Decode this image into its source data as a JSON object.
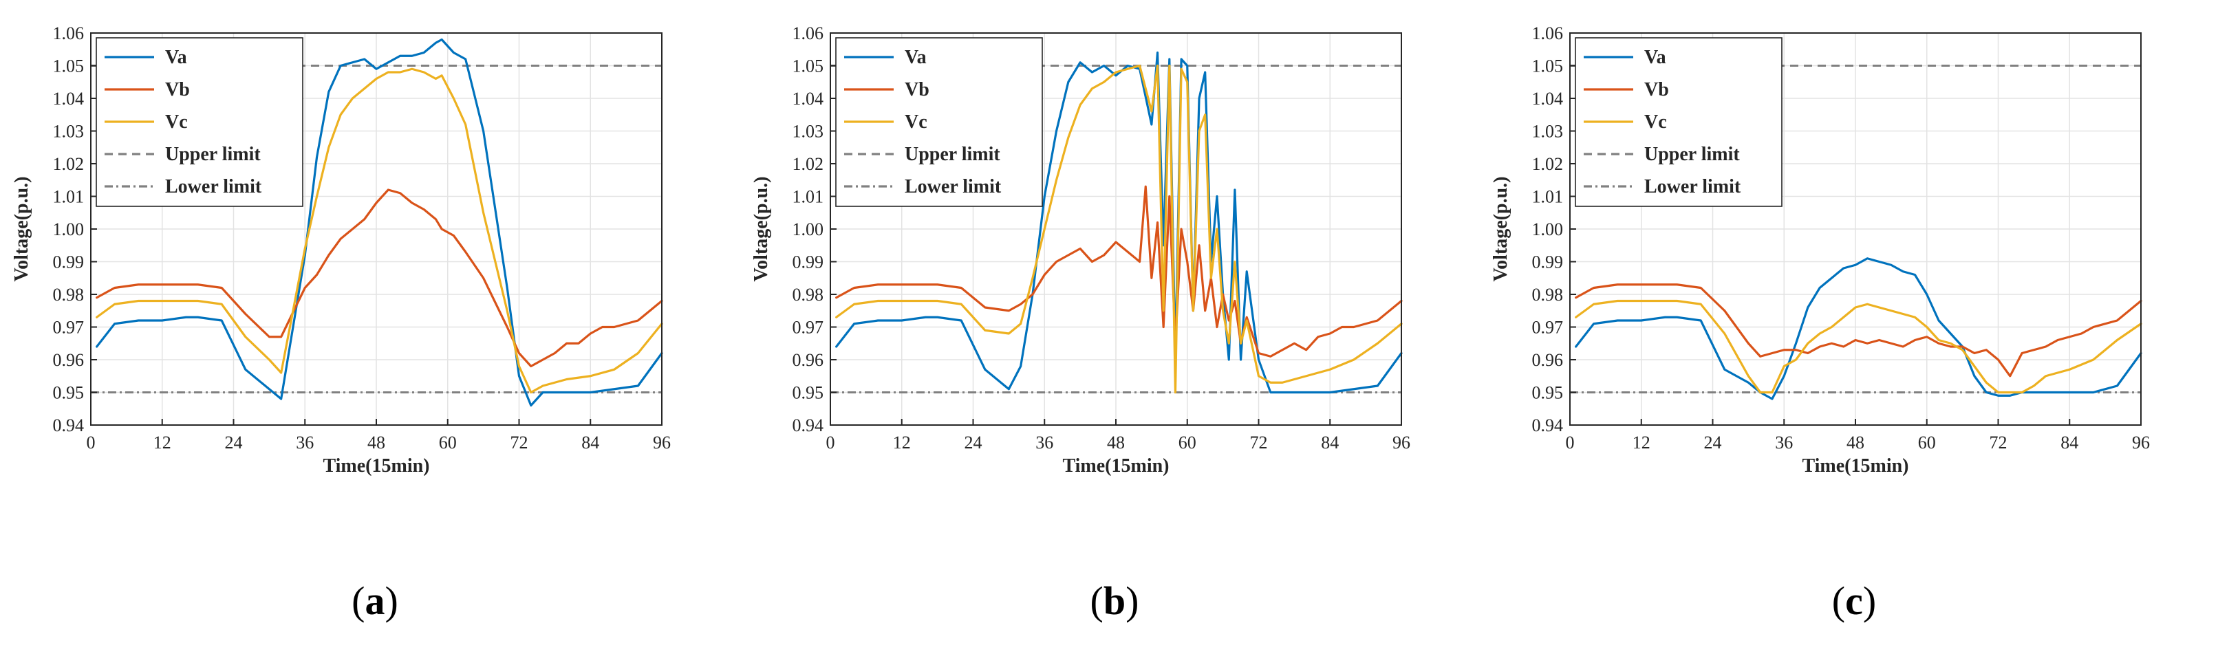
{
  "figure": {
    "panels": [
      {
        "caption_letter": "a",
        "caption_open": "(",
        "caption_close": ")"
      },
      {
        "caption_letter": "b",
        "caption_open": "(",
        "caption_close": ")"
      },
      {
        "caption_letter": "c",
        "caption_open": "(",
        "caption_close": ")"
      }
    ]
  },
  "chart_data": [
    {
      "type": "line",
      "title": "",
      "xlabel": "Time(15min)",
      "ylabel": "Voltage(p.u.)",
      "xlim": [
        0,
        96
      ],
      "ylim": [
        0.94,
        1.06
      ],
      "xticks": [
        0,
        12,
        24,
        36,
        48,
        60,
        72,
        84,
        96
      ],
      "yticks": [
        0.94,
        0.95,
        0.96,
        0.97,
        0.98,
        0.99,
        1.0,
        1.01,
        1.02,
        1.03,
        1.04,
        1.05,
        1.06
      ],
      "ytick_labels": [
        "0.94",
        "0.95",
        "0.96",
        "0.97",
        "0.98",
        "0.99",
        "1.00",
        "1.01",
        "1.02",
        "1.03",
        "1.04",
        "1.05",
        "1.06"
      ],
      "grid": true,
      "legend_position": "top-left",
      "colors": {
        "Va": "#0072BD",
        "Vb": "#D95319",
        "Vc": "#EDB120",
        "limit": "#808080"
      },
      "series": [
        {
          "name": "Va",
          "x": [
            1,
            4,
            8,
            12,
            16,
            18,
            22,
            26,
            30,
            32,
            36,
            38,
            40,
            42,
            44,
            46,
            48,
            50,
            52,
            54,
            56,
            58,
            59,
            61,
            63,
            66,
            70,
            72,
            74,
            76,
            80,
            84,
            88,
            92,
            96
          ],
          "values": [
            0.964,
            0.971,
            0.972,
            0.972,
            0.973,
            0.973,
            0.972,
            0.957,
            0.951,
            0.948,
            0.992,
            1.022,
            1.042,
            1.05,
            1.051,
            1.052,
            1.049,
            1.051,
            1.053,
            1.053,
            1.054,
            1.057,
            1.058,
            1.054,
            1.052,
            1.03,
            0.982,
            0.955,
            0.946,
            0.95,
            0.95,
            0.95,
            0.951,
            0.952,
            0.962
          ]
        },
        {
          "name": "Vb",
          "x": [
            1,
            4,
            8,
            12,
            16,
            18,
            22,
            26,
            30,
            32,
            36,
            38,
            40,
            42,
            44,
            46,
            48,
            50,
            52,
            54,
            56,
            58,
            59,
            61,
            63,
            66,
            70,
            72,
            74,
            76,
            78,
            80,
            82,
            84,
            86,
            88,
            92,
            96
          ],
          "values": [
            0.979,
            0.982,
            0.983,
            0.983,
            0.983,
            0.983,
            0.982,
            0.974,
            0.967,
            0.967,
            0.982,
            0.986,
            0.992,
            0.997,
            1.0,
            1.003,
            1.008,
            1.012,
            1.011,
            1.008,
            1.006,
            1.003,
            1.0,
            0.998,
            0.993,
            0.985,
            0.97,
            0.962,
            0.958,
            0.96,
            0.962,
            0.965,
            0.965,
            0.968,
            0.97,
            0.97,
            0.972,
            0.978
          ]
        },
        {
          "name": "Vc",
          "x": [
            1,
            4,
            8,
            12,
            16,
            18,
            22,
            26,
            30,
            32,
            36,
            38,
            40,
            42,
            44,
            46,
            48,
            50,
            52,
            54,
            56,
            58,
            59,
            61,
            63,
            66,
            70,
            72,
            74,
            76,
            78,
            80,
            84,
            88,
            92,
            96
          ],
          "values": [
            0.973,
            0.977,
            0.978,
            0.978,
            0.978,
            0.978,
            0.977,
            0.967,
            0.96,
            0.956,
            0.994,
            1.01,
            1.025,
            1.035,
            1.04,
            1.043,
            1.046,
            1.048,
            1.048,
            1.049,
            1.048,
            1.046,
            1.047,
            1.04,
            1.032,
            1.005,
            0.975,
            0.958,
            0.95,
            0.952,
            0.953,
            0.954,
            0.955,
            0.957,
            0.962,
            0.971
          ]
        },
        {
          "name": "Upper limit",
          "x": [
            0,
            96
          ],
          "values": [
            1.05,
            1.05
          ]
        },
        {
          "name": "Lower limit",
          "x": [
            0,
            96
          ],
          "values": [
            0.95,
            0.95
          ]
        }
      ]
    },
    {
      "type": "line",
      "title": "",
      "xlabel": "Time(15min)",
      "ylabel": "Voltage(p.u.)",
      "xlim": [
        0,
        96
      ],
      "ylim": [
        0.94,
        1.06
      ],
      "xticks": [
        0,
        12,
        24,
        36,
        48,
        60,
        72,
        84,
        96
      ],
      "yticks": [
        0.94,
        0.95,
        0.96,
        0.97,
        0.98,
        0.99,
        1.0,
        1.01,
        1.02,
        1.03,
        1.04,
        1.05,
        1.06
      ],
      "ytick_labels": [
        "0.94",
        "0.95",
        "0.96",
        "0.97",
        "0.98",
        "0.99",
        "1.00",
        "1.01",
        "1.02",
        "1.03",
        "1.04",
        "1.05",
        "1.06"
      ],
      "grid": true,
      "legend_position": "top-left",
      "colors": {
        "Va": "#0072BD",
        "Vb": "#D95319",
        "Vc": "#EDB120",
        "limit": "#808080"
      },
      "series": [
        {
          "name": "Va",
          "x": [
            1,
            4,
            8,
            12,
            16,
            18,
            22,
            26,
            30,
            32,
            34,
            36,
            38,
            40,
            42,
            44,
            46,
            48,
            50,
            52,
            54,
            55,
            56,
            57,
            58,
            59,
            60,
            61,
            62,
            63,
            64,
            65,
            66,
            67,
            68,
            69,
            70,
            72,
            74,
            76,
            80,
            84,
            88,
            92,
            96
          ],
          "values": [
            0.964,
            0.971,
            0.972,
            0.972,
            0.973,
            0.973,
            0.972,
            0.957,
            0.951,
            0.958,
            0.98,
            1.01,
            1.03,
            1.045,
            1.051,
            1.048,
            1.05,
            1.047,
            1.05,
            1.049,
            1.032,
            1.054,
            0.995,
            1.052,
            0.96,
            1.052,
            1.05,
            0.975,
            1.04,
            1.048,
            0.99,
            1.01,
            0.98,
            0.96,
            1.012,
            0.96,
            0.987,
            0.96,
            0.95,
            0.95,
            0.95,
            0.95,
            0.951,
            0.952,
            0.962
          ]
        },
        {
          "name": "Vb",
          "x": [
            1,
            4,
            8,
            12,
            16,
            18,
            22,
            26,
            30,
            32,
            34,
            36,
            38,
            40,
            42,
            44,
            46,
            48,
            50,
            52,
            53,
            54,
            55,
            56,
            57,
            58,
            59,
            60,
            61,
            62,
            63,
            64,
            65,
            66,
            67,
            68,
            69,
            70,
            72,
            74,
            76,
            78,
            80,
            82,
            84,
            86,
            88,
            92,
            96
          ],
          "values": [
            0.979,
            0.982,
            0.983,
            0.983,
            0.983,
            0.983,
            0.982,
            0.976,
            0.975,
            0.977,
            0.98,
            0.986,
            0.99,
            0.992,
            0.994,
            0.99,
            0.992,
            0.996,
            0.993,
            0.99,
            1.013,
            0.985,
            1.002,
            0.97,
            1.01,
            0.965,
            1.0,
            0.99,
            0.975,
            0.995,
            0.975,
            0.985,
            0.97,
            0.98,
            0.972,
            0.978,
            0.965,
            0.973,
            0.962,
            0.961,
            0.963,
            0.965,
            0.963,
            0.967,
            0.968,
            0.97,
            0.97,
            0.972,
            0.978
          ]
        },
        {
          "name": "Vc",
          "x": [
            1,
            4,
            8,
            12,
            16,
            18,
            22,
            26,
            30,
            32,
            34,
            36,
            38,
            40,
            42,
            44,
            46,
            48,
            50,
            52,
            54,
            55,
            56,
            57,
            58,
            59,
            60,
            61,
            62,
            63,
            64,
            65,
            66,
            67,
            68,
            69,
            70,
            72,
            74,
            76,
            78,
            80,
            84,
            88,
            92,
            96
          ],
          "values": [
            0.973,
            0.977,
            0.978,
            0.978,
            0.978,
            0.978,
            0.977,
            0.969,
            0.968,
            0.971,
            0.985,
            1.0,
            1.015,
            1.028,
            1.038,
            1.043,
            1.045,
            1.048,
            1.049,
            1.05,
            1.036,
            1.05,
            0.975,
            1.05,
            0.95,
            1.049,
            1.045,
            0.975,
            1.03,
            1.035,
            0.985,
            1.0,
            0.975,
            0.965,
            0.99,
            0.965,
            0.972,
            0.955,
            0.953,
            0.953,
            0.954,
            0.955,
            0.957,
            0.96,
            0.965,
            0.971
          ]
        },
        {
          "name": "Upper limit",
          "x": [
            0,
            96
          ],
          "values": [
            1.05,
            1.05
          ]
        },
        {
          "name": "Lower limit",
          "x": [
            0,
            96
          ],
          "values": [
            0.95,
            0.95
          ]
        }
      ]
    },
    {
      "type": "line",
      "title": "",
      "xlabel": "Time(15min)",
      "ylabel": "Voltage(p.u.)",
      "xlim": [
        0,
        96
      ],
      "ylim": [
        0.94,
        1.06
      ],
      "xticks": [
        0,
        12,
        24,
        36,
        48,
        60,
        72,
        84,
        96
      ],
      "yticks": [
        0.94,
        0.95,
        0.96,
        0.97,
        0.98,
        0.99,
        1.0,
        1.01,
        1.02,
        1.03,
        1.04,
        1.05,
        1.06
      ],
      "ytick_labels": [
        "0.94",
        "0.95",
        "0.96",
        "0.97",
        "0.98",
        "0.99",
        "1.00",
        "1.01",
        "1.02",
        "1.03",
        "1.04",
        "1.05",
        "1.06"
      ],
      "grid": true,
      "legend_position": "top-left",
      "colors": {
        "Va": "#0072BD",
        "Vb": "#D95319",
        "Vc": "#EDB120",
        "limit": "#808080"
      },
      "series": [
        {
          "name": "Va",
          "x": [
            1,
            4,
            8,
            12,
            16,
            18,
            22,
            26,
            30,
            32,
            34,
            36,
            38,
            40,
            42,
            44,
            46,
            48,
            50,
            52,
            54,
            56,
            58,
            60,
            62,
            64,
            66,
            68,
            70,
            72,
            74,
            76,
            78,
            80,
            84,
            88,
            92,
            96
          ],
          "values": [
            0.964,
            0.971,
            0.972,
            0.972,
            0.973,
            0.973,
            0.972,
            0.957,
            0.953,
            0.95,
            0.948,
            0.955,
            0.965,
            0.976,
            0.982,
            0.985,
            0.988,
            0.989,
            0.991,
            0.99,
            0.989,
            0.987,
            0.986,
            0.98,
            0.972,
            0.968,
            0.964,
            0.955,
            0.95,
            0.949,
            0.949,
            0.95,
            0.95,
            0.95,
            0.95,
            0.95,
            0.952,
            0.962
          ]
        },
        {
          "name": "Vb",
          "x": [
            1,
            4,
            8,
            12,
            16,
            18,
            22,
            26,
            30,
            32,
            34,
            36,
            38,
            40,
            42,
            44,
            46,
            48,
            50,
            52,
            54,
            56,
            58,
            60,
            62,
            64,
            66,
            68,
            70,
            72,
            74,
            76,
            78,
            80,
            82,
            84,
            86,
            88,
            92,
            96
          ],
          "values": [
            0.979,
            0.982,
            0.983,
            0.983,
            0.983,
            0.983,
            0.982,
            0.975,
            0.965,
            0.961,
            0.962,
            0.963,
            0.963,
            0.962,
            0.964,
            0.965,
            0.964,
            0.966,
            0.965,
            0.966,
            0.965,
            0.964,
            0.966,
            0.967,
            0.965,
            0.964,
            0.964,
            0.962,
            0.963,
            0.96,
            0.955,
            0.962,
            0.963,
            0.964,
            0.966,
            0.967,
            0.968,
            0.97,
            0.972,
            0.978
          ]
        },
        {
          "name": "Vc",
          "x": [
            1,
            4,
            8,
            12,
            16,
            18,
            22,
            26,
            30,
            32,
            34,
            36,
            38,
            40,
            42,
            44,
            46,
            48,
            50,
            52,
            54,
            56,
            58,
            60,
            62,
            64,
            66,
            68,
            70,
            72,
            74,
            76,
            78,
            80,
            84,
            88,
            92,
            96
          ],
          "values": [
            0.973,
            0.977,
            0.978,
            0.978,
            0.978,
            0.978,
            0.977,
            0.968,
            0.955,
            0.95,
            0.95,
            0.958,
            0.96,
            0.965,
            0.968,
            0.97,
            0.973,
            0.976,
            0.977,
            0.976,
            0.975,
            0.974,
            0.973,
            0.97,
            0.966,
            0.965,
            0.963,
            0.958,
            0.953,
            0.95,
            0.95,
            0.95,
            0.952,
            0.955,
            0.957,
            0.96,
            0.966,
            0.971
          ]
        },
        {
          "name": "Upper limit",
          "x": [
            0,
            96
          ],
          "values": [
            1.05,
            1.05
          ]
        },
        {
          "name": "Lower limit",
          "x": [
            0,
            96
          ],
          "values": [
            0.95,
            0.95
          ]
        }
      ]
    }
  ]
}
